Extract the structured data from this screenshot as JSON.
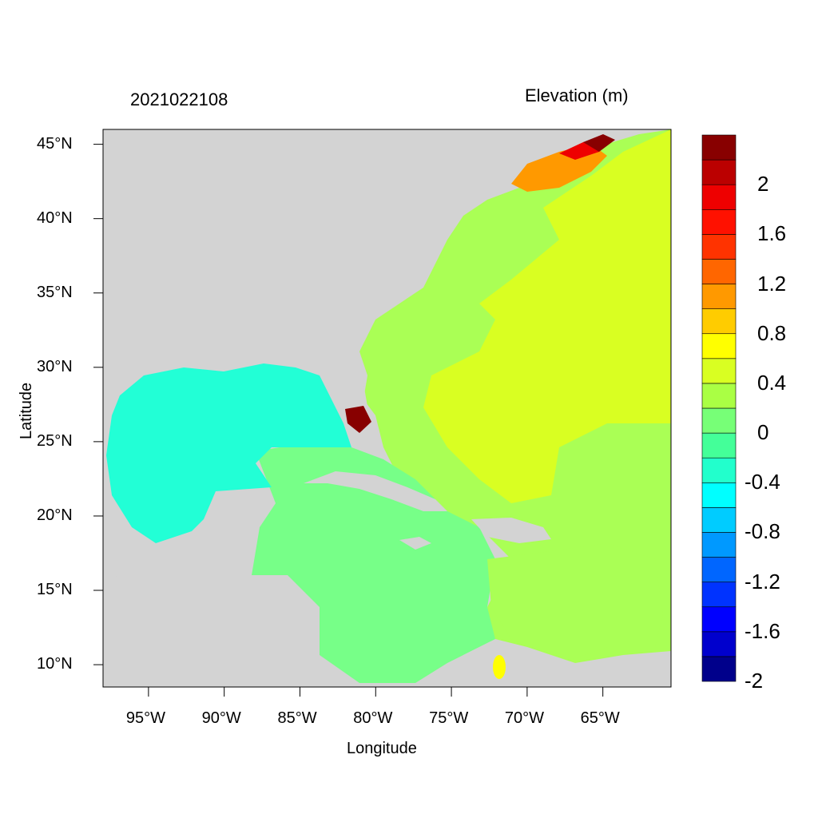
{
  "title_left": "2021022108",
  "title_right": "Elevation (m)",
  "x_axis": {
    "label": "Longitude",
    "range": [
      -98,
      -60.5
    ],
    "ticks": [
      {
        "value": -95,
        "label": "95°W"
      },
      {
        "value": -90,
        "label": "90°W"
      },
      {
        "value": -85,
        "label": "85°W"
      },
      {
        "value": -80,
        "label": "80°W"
      },
      {
        "value": -75,
        "label": "75°W"
      },
      {
        "value": -70,
        "label": "70°W"
      },
      {
        "value": -65,
        "label": "65°W"
      }
    ]
  },
  "y_axis": {
    "label": "Latitude",
    "range": [
      8.5,
      46
    ],
    "ticks": [
      {
        "value": 45,
        "label": "45°N"
      },
      {
        "value": 40,
        "label": "40°N"
      },
      {
        "value": 35,
        "label": "35°N"
      },
      {
        "value": 30,
        "label": "30°N"
      },
      {
        "value": 25,
        "label": "25°N"
      },
      {
        "value": 20,
        "label": "20°N"
      },
      {
        "value": 15,
        "label": "15°N"
      },
      {
        "value": 10,
        "label": "10°N"
      }
    ]
  },
  "colorbar": {
    "levels": [
      "#00008b",
      "#0000cd",
      "#0000ff",
      "#0033ff",
      "#0066ff",
      "#0099ff",
      "#00ccff",
      "#00ffff",
      "#22ffcc",
      "#44ff99",
      "#77ff77",
      "#aaff44",
      "#d9ff22",
      "#ffff00",
      "#ffcc00",
      "#ff9900",
      "#ff6600",
      "#ff3300",
      "#ff1100",
      "#ee0000",
      "#bb0000",
      "#880000"
    ],
    "labels": [
      "2",
      "1.6",
      "1.2",
      "0.8",
      "0.4",
      "0",
      "-0.4",
      "-0.8",
      "-1.2",
      "-1.6",
      "-2"
    ]
  },
  "colors": {
    "land": "#d3d3d3",
    "gulf": "#22ffd6",
    "caribbean": "#77ff88",
    "atlantic": "#aaff55",
    "atlantic_high": "#d9ff22",
    "surge_max": "#880000"
  }
}
